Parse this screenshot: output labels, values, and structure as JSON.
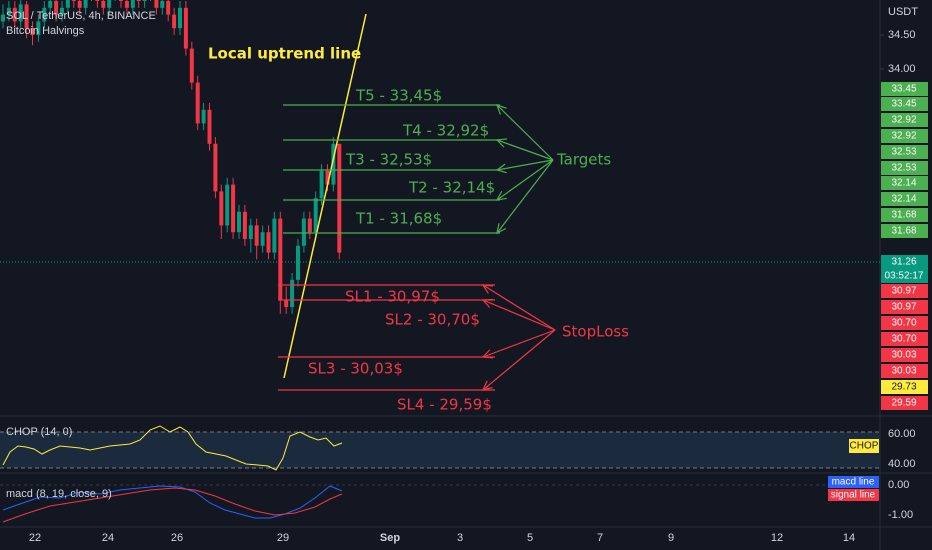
{
  "header": {
    "symbol": "SOL / TetherUS, 4h, BINANCE",
    "indicator": "Bitcoin Halvings"
  },
  "price_axis": {
    "currency": "USDT",
    "ticks": [
      {
        "value": 34.5,
        "label": "34.50"
      },
      {
        "value": 34.0,
        "label": "34.00"
      }
    ],
    "labels": [
      {
        "text": "33.45",
        "color": "#4caf50"
      },
      {
        "text": "33.45",
        "color": "#4caf50"
      },
      {
        "text": "32.92",
        "color": "#4caf50"
      },
      {
        "text": "32.92",
        "color": "#4caf50"
      },
      {
        "text": "32.53",
        "color": "#4caf50"
      },
      {
        "text": "32.53",
        "color": "#4caf50"
      },
      {
        "text": "32.14",
        "color": "#4caf50"
      },
      {
        "text": "32.14",
        "color": "#4caf50"
      },
      {
        "text": "31.68",
        "color": "#4caf50"
      },
      {
        "text": "31.68",
        "color": "#4caf50"
      },
      {
        "text": "31.26",
        "color": "#089981"
      },
      {
        "text": "03:52:17",
        "color": "#089981"
      },
      {
        "text": "30.97",
        "color": "#f23645"
      },
      {
        "text": "30.97",
        "color": "#f23645"
      },
      {
        "text": "30.70",
        "color": "#f23645"
      },
      {
        "text": "30.70",
        "color": "#f23645"
      },
      {
        "text": "30.03",
        "color": "#f23645"
      },
      {
        "text": "30.03",
        "color": "#f23645"
      },
      {
        "text": "29.73",
        "color": "#ffeb3b"
      },
      {
        "text": "29.59",
        "color": "#f23645"
      }
    ]
  },
  "annotations": {
    "trend_line": "Local uptrend line",
    "targets_label": "Targets",
    "targets": [
      "T5 - 33,45$",
      "T4 - 32,92$",
      "T3 - 32,53$",
      "T2 - 32,14$",
      "T1 - 31,68$"
    ],
    "stoploss_label": "StopLoss",
    "stoplosses": [
      "SL1 - 30,97$",
      "SL2 - 30,70$",
      "SL3 - 30,03$",
      "SL4 - 29,59$"
    ]
  },
  "candles": [
    [
      34.7,
      34.95,
      34.6,
      34.8
    ],
    [
      34.8,
      35.0,
      34.7,
      34.9
    ],
    [
      34.9,
      35.0,
      34.6,
      34.7
    ],
    [
      34.7,
      35.05,
      34.6,
      34.95
    ],
    [
      34.95,
      35.0,
      34.45,
      34.6
    ],
    [
      34.6,
      34.7,
      34.35,
      34.5
    ],
    [
      34.5,
      34.8,
      34.4,
      34.7
    ],
    [
      34.7,
      35.0,
      34.6,
      34.9
    ],
    [
      34.9,
      35.1,
      34.8,
      35.0
    ],
    [
      35.0,
      35.1,
      34.7,
      34.8
    ],
    [
      34.8,
      35.0,
      34.7,
      34.9
    ],
    [
      34.9,
      35.2,
      34.8,
      35.1
    ],
    [
      35.1,
      35.2,
      34.9,
      35.0
    ],
    [
      35.0,
      35.1,
      34.8,
      34.9
    ],
    [
      34.9,
      35.3,
      34.8,
      35.2
    ],
    [
      35.2,
      35.3,
      35.0,
      35.1
    ],
    [
      35.1,
      35.2,
      34.9,
      35.0
    ],
    [
      35.0,
      35.1,
      34.8,
      34.9
    ],
    [
      34.9,
      35.2,
      34.8,
      35.1
    ],
    [
      35.1,
      35.3,
      35.0,
      35.2
    ],
    [
      35.2,
      35.3,
      34.9,
      35.0
    ],
    [
      35.0,
      35.1,
      34.8,
      34.9
    ],
    [
      34.9,
      35.2,
      34.8,
      35.1
    ],
    [
      35.1,
      35.2,
      34.9,
      35.0
    ],
    [
      35.0,
      35.3,
      34.9,
      35.2
    ],
    [
      35.2,
      35.3,
      35.0,
      35.1
    ],
    [
      35.1,
      35.2,
      34.8,
      34.9
    ],
    [
      34.9,
      35.1,
      34.8,
      35.0
    ],
    [
      35.0,
      35.1,
      34.7,
      34.8
    ],
    [
      34.8,
      34.9,
      34.5,
      34.6
    ],
    [
      34.6,
      35.0,
      34.5,
      34.9
    ],
    [
      34.9,
      35.0,
      34.2,
      34.3
    ],
    [
      34.3,
      34.4,
      33.7,
      33.8
    ],
    [
      33.8,
      33.9,
      33.1,
      33.2
    ],
    [
      33.2,
      33.5,
      33.1,
      33.4
    ],
    [
      33.4,
      33.5,
      32.8,
      32.9
    ],
    [
      32.9,
      33.0,
      32.1,
      32.2
    ],
    [
      32.2,
      32.3,
      31.5,
      31.7
    ],
    [
      31.7,
      32.4,
      31.6,
      32.3
    ],
    [
      32.3,
      32.4,
      31.5,
      31.6
    ],
    [
      31.6,
      32.0,
      31.5,
      31.9
    ],
    [
      31.9,
      32.0,
      31.4,
      31.5
    ],
    [
      31.5,
      31.8,
      31.3,
      31.7
    ],
    [
      31.7,
      31.8,
      31.2,
      31.4
    ],
    [
      31.4,
      31.7,
      31.3,
      31.6
    ],
    [
      31.6,
      31.7,
      31.2,
      31.3
    ],
    [
      31.3,
      31.9,
      31.2,
      31.8
    ],
    [
      31.8,
      31.9,
      30.4,
      30.6
    ],
    [
      30.6,
      30.8,
      30.4,
      30.5
    ],
    [
      30.5,
      31.0,
      30.4,
      30.9
    ],
    [
      30.9,
      31.5,
      30.8,
      31.4
    ],
    [
      31.4,
      31.9,
      31.3,
      31.8
    ],
    [
      31.8,
      31.9,
      31.5,
      31.6
    ],
    [
      31.6,
      32.2,
      31.5,
      32.1
    ],
    [
      32.1,
      32.6,
      32.0,
      32.5
    ],
    [
      32.5,
      32.6,
      32.2,
      32.3
    ],
    [
      32.3,
      33.0,
      32.2,
      32.9
    ],
    [
      32.9,
      32.9,
      31.2,
      31.3
    ]
  ],
  "chop": {
    "title": "CHOP (14, 0)",
    "ticks": [
      "60.00",
      "40.00"
    ],
    "tag": "CHOP"
  },
  "macd": {
    "title": "macd (8, 19, close, 9)",
    "ticks": [
      "0.00",
      "-1.00"
    ],
    "legend": [
      "macd line",
      "signal line"
    ]
  },
  "time_axis": [
    "22",
    "24",
    "26",
    "29",
    "Sep",
    "3",
    "5",
    "7",
    "9",
    "12",
    "14"
  ]
}
